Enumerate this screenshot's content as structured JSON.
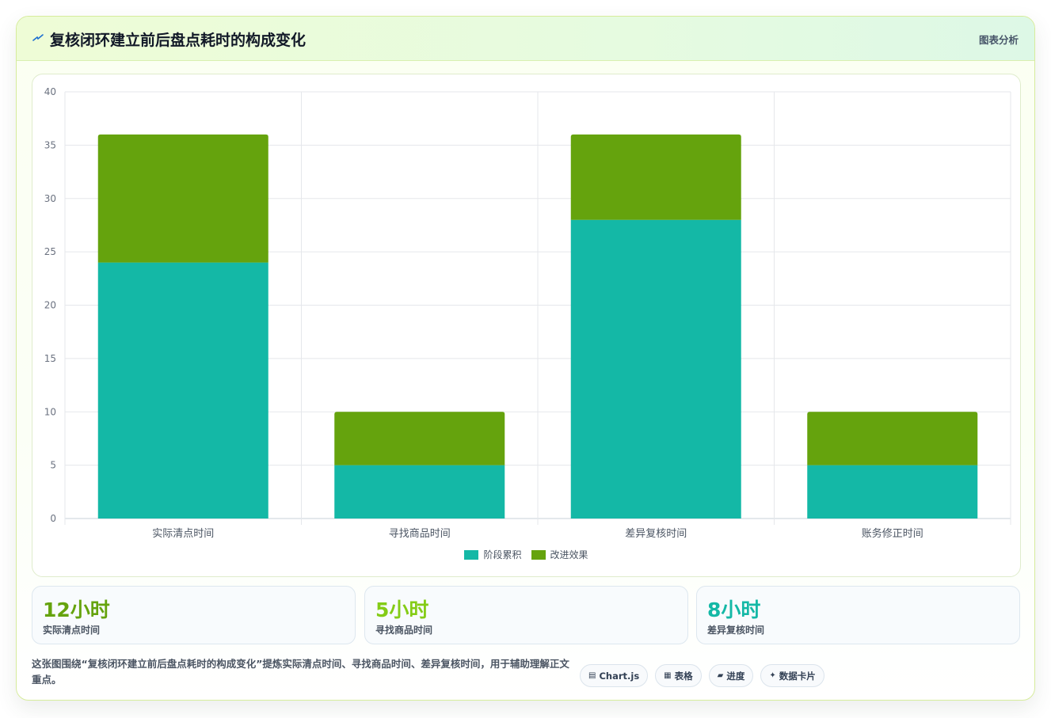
{
  "header": {
    "title": "复核闭环建立前后盘点耗时的构成变化",
    "icon": "sparkle-icon",
    "analysis_label": "图表分析"
  },
  "colors": {
    "teal": "#14b8a6",
    "green": "#65a30d",
    "accent_green": "#84cc16",
    "accent_teal": "#14b8a6"
  },
  "chart_data": {
    "type": "bar",
    "stacked": true,
    "categories": [
      "实际清点时间",
      "寻找商品时间",
      "差异复核时间",
      "账务修正时间"
    ],
    "series": [
      {
        "name": "阶段累积",
        "values": [
          24,
          5,
          28,
          5
        ],
        "color": "#14b8a6"
      },
      {
        "name": "改进效果",
        "values": [
          12,
          5,
          8,
          5
        ],
        "color": "#65a30d"
      }
    ],
    "ylim": [
      0,
      40
    ],
    "yticks": [
      0,
      5,
      10,
      15,
      20,
      25,
      30,
      35,
      40
    ],
    "grid": true,
    "legend": "bottom"
  },
  "stats": [
    {
      "value": "12小时",
      "label": "实际清点时间",
      "color": "#65a30d"
    },
    {
      "value": "5小时",
      "label": "寻找商品时间",
      "color": "#84cc16"
    },
    {
      "value": "8小时",
      "label": "差异复核时间",
      "color": "#14b8a6"
    }
  ],
  "description": "这张图围绕“复核闭环建立前后盘点耗时的构成变化”提炼实际清点时间、寻找商品时间、差异复核时间，用于辅助理解正文重点。",
  "tags": [
    {
      "icon": "▤",
      "label": "Chart.js"
    },
    {
      "icon": "▦",
      "label": "表格"
    },
    {
      "icon": "▰",
      "label": "进度"
    },
    {
      "icon": "✦",
      "label": "数据卡片"
    }
  ]
}
